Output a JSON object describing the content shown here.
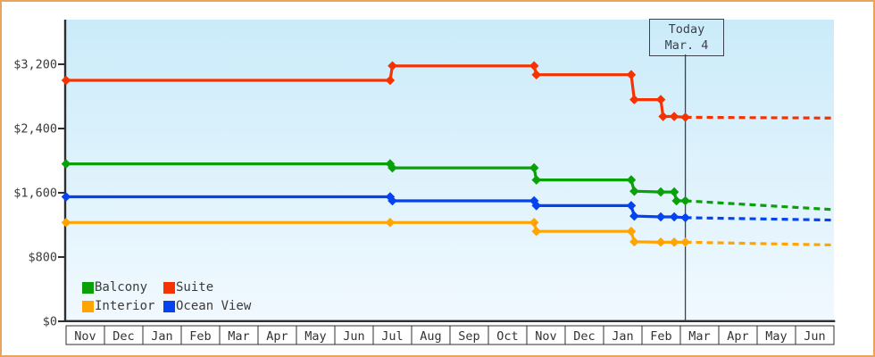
{
  "frame": {
    "border_color": "#eaa55d",
    "axis_color": "#2f2f2f",
    "text_color": "#3b3b3b"
  },
  "today_marker": {
    "line1": "Today",
    "line2": "Mar. 4"
  },
  "chart_data": {
    "type": "line",
    "x_axis": {
      "unit": "month",
      "labels": [
        "Nov",
        "Dec",
        "Jan",
        "Feb",
        "Mar",
        "Apr",
        "May",
        "Jun",
        "Jul",
        "Aug",
        "Sep",
        "Oct",
        "Nov",
        "Dec",
        "Jan",
        "Feb",
        "Mar",
        "Apr",
        "May",
        "Jun"
      ]
    },
    "y_axis": {
      "ticks": [
        {
          "value": 0,
          "label": "$0"
        },
        {
          "value": 800,
          "label": "$800"
        },
        {
          "value": 1600,
          "label": "$1,600"
        },
        {
          "value": 2400,
          "label": "$2,400"
        },
        {
          "value": 3200,
          "label": "$3,200"
        }
      ],
      "range": [
        0,
        3780
      ]
    },
    "today": {
      "line1": "Today",
      "line2": "Mar. 4",
      "month_x": 16.13
    },
    "series": [
      {
        "name": "Suite",
        "color": "#f63300",
        "points": [
          [
            0,
            3000
          ],
          [
            8.44,
            3000
          ],
          [
            8.5,
            3180
          ],
          [
            12.19,
            3180
          ],
          [
            12.25,
            3070
          ],
          [
            14.72,
            3070
          ],
          [
            14.8,
            2760
          ],
          [
            15.49,
            2760
          ],
          [
            15.55,
            2550
          ],
          [
            15.84,
            2550
          ],
          [
            16.13,
            2540
          ]
        ],
        "projected": [
          [
            16.13,
            2540
          ],
          [
            20,
            2530
          ]
        ]
      },
      {
        "name": "Balcony",
        "color": "#0aa00a",
        "points": [
          [
            0,
            1960
          ],
          [
            8.44,
            1960
          ],
          [
            8.5,
            1910
          ],
          [
            12.19,
            1910
          ],
          [
            12.25,
            1760
          ],
          [
            14.72,
            1760
          ],
          [
            14.8,
            1620
          ],
          [
            15.49,
            1610
          ],
          [
            15.84,
            1610
          ],
          [
            15.9,
            1500
          ],
          [
            16.13,
            1500
          ]
        ],
        "projected": [
          [
            16.13,
            1500
          ],
          [
            20,
            1390
          ]
        ]
      },
      {
        "name": "Ocean View",
        "color": "#0543f0",
        "points": [
          [
            0,
            1550
          ],
          [
            8.44,
            1550
          ],
          [
            8.5,
            1500
          ],
          [
            12.19,
            1500
          ],
          [
            12.25,
            1440
          ],
          [
            14.72,
            1440
          ],
          [
            14.8,
            1310
          ],
          [
            15.49,
            1300
          ],
          [
            15.84,
            1300
          ],
          [
            16.13,
            1290
          ]
        ],
        "projected": [
          [
            16.13,
            1290
          ],
          [
            20,
            1260
          ]
        ]
      },
      {
        "name": "Interior",
        "color": "#ffa400",
        "points": [
          [
            0,
            1230
          ],
          [
            8.44,
            1230
          ],
          [
            12.19,
            1230
          ],
          [
            12.25,
            1120
          ],
          [
            14.72,
            1120
          ],
          [
            14.8,
            990
          ],
          [
            15.49,
            985
          ],
          [
            15.84,
            985
          ],
          [
            16.13,
            985
          ]
        ],
        "projected": [
          [
            16.13,
            985
          ],
          [
            20,
            950
          ]
        ]
      }
    ],
    "legend": {
      "position": "bottom-left",
      "items": [
        {
          "label": "Balcony",
          "color": "#0aa00a"
        },
        {
          "label": "Suite",
          "color": "#f63300"
        },
        {
          "label": "Interior",
          "color": "#ffa400"
        },
        {
          "label": "Ocean View",
          "color": "#0543f0"
        }
      ]
    },
    "grid": false
  }
}
